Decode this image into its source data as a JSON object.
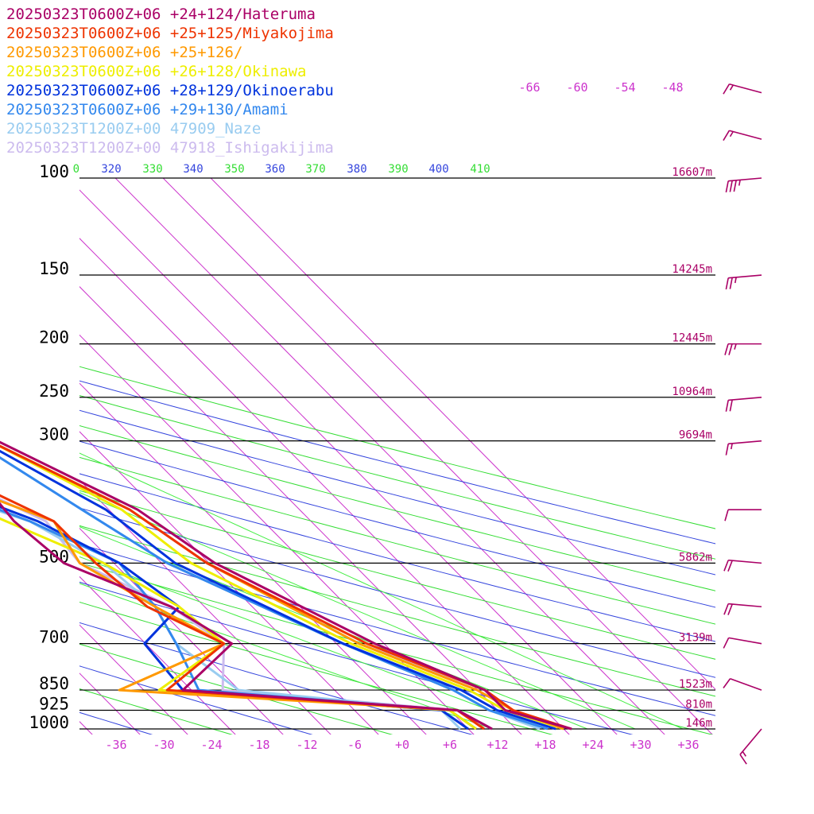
{
  "chart_data": {
    "type": "line",
    "title": "",
    "xlabel": "",
    "ylabel": "",
    "x_tick_labels": [
      "-36",
      "-30",
      "-24",
      "-18",
      "-12",
      "-6",
      "+0",
      "+6",
      "+12",
      "+18",
      "+24",
      "+30",
      "+36"
    ],
    "xlim": [
      -40,
      39
    ],
    "pressure_levels": [
      {
        "p": 100,
        "label": "100",
        "height": "16607m"
      },
      {
        "p": 150,
        "label": "150",
        "height": "14245m"
      },
      {
        "p": 200,
        "label": "200",
        "height": "12445m"
      },
      {
        "p": 250,
        "label": "250",
        "height": "10964m"
      },
      {
        "p": 300,
        "label": "300",
        "height": "9694m"
      },
      {
        "p": 500,
        "label": "500",
        "height": "5862m"
      },
      {
        "p": 700,
        "label": "700",
        "height": "3139m"
      },
      {
        "p": 850,
        "label": "850",
        "height": "1523m"
      },
      {
        "p": 925,
        "label": "925",
        "height": "810m"
      },
      {
        "p": 1000,
        "label": "1000",
        "height": "146m"
      }
    ],
    "theta_labels": [
      "0",
      "320",
      "330",
      "340",
      "350",
      "360",
      "370",
      "380",
      "390",
      "400",
      "410"
    ],
    "mixing_labels": [
      "-66",
      "-60",
      "-54",
      "-48"
    ],
    "series": [
      {
        "name": "20250323T0600Z+06 +24+124/Hateruma",
        "color": "#aa0066",
        "temp": [
          [
            1000,
            22
          ],
          [
            925,
            16
          ],
          [
            850,
            16
          ],
          [
            700,
            8
          ],
          [
            500,
            -2
          ],
          [
            400,
            -5
          ],
          [
            300,
            -14
          ],
          [
            250,
            -24
          ],
          [
            200,
            -38
          ],
          [
            150,
            -57
          ],
          [
            120,
            -66
          ],
          [
            100,
            -61
          ]
        ],
        "dew": [
          [
            1000,
            12
          ],
          [
            925,
            10
          ],
          [
            850,
            -22
          ],
          [
            700,
            -10
          ],
          [
            600,
            -13
          ],
          [
            500,
            -21
          ],
          [
            420,
            -22
          ],
          [
            350,
            -21
          ],
          [
            310,
            -25
          ]
        ]
      },
      {
        "name": "20250323T0600Z+06 +25+125/Miyakojima",
        "color": "#ee3300",
        "temp": [
          [
            1000,
            22
          ],
          [
            925,
            17
          ],
          [
            850,
            16
          ],
          [
            700,
            7
          ],
          [
            500,
            -3
          ],
          [
            400,
            -6
          ],
          [
            300,
            -15
          ],
          [
            250,
            -24
          ],
          [
            200,
            -38
          ],
          [
            150,
            -57
          ],
          [
            120,
            -64
          ],
          [
            100,
            -59
          ]
        ],
        "dew": [
          [
            1000,
            11
          ],
          [
            925,
            10
          ],
          [
            850,
            -24
          ],
          [
            700,
            -11
          ],
          [
            600,
            -16
          ],
          [
            500,
            -17
          ],
          [
            420,
            -17
          ],
          [
            350,
            -23
          ],
          [
            310,
            -28
          ]
        ]
      },
      {
        "name": "20250323T0600Z+06 +25+126/",
        "color": "#ff9900",
        "temp": [
          [
            1000,
            21
          ],
          [
            925,
            17
          ],
          [
            850,
            15
          ],
          [
            700,
            6
          ],
          [
            500,
            -3
          ],
          [
            400,
            -6
          ],
          [
            300,
            -15
          ],
          [
            250,
            -24
          ],
          [
            200,
            -38
          ],
          [
            150,
            -57
          ],
          [
            120,
            -63
          ],
          [
            100,
            -58
          ]
        ],
        "dew": [
          [
            1000,
            11
          ],
          [
            925,
            10
          ],
          [
            850,
            -30
          ],
          [
            700,
            -11
          ],
          [
            600,
            -15
          ],
          [
            500,
            -19
          ],
          [
            420,
            -17
          ],
          [
            350,
            -26
          ],
          [
            310,
            -31
          ]
        ]
      },
      {
        "name": "20250323T0600Z+06 +26+128/Okinawa",
        "color": "#eeee00",
        "temp": [
          [
            1000,
            21
          ],
          [
            925,
            16
          ],
          [
            850,
            14
          ],
          [
            700,
            5
          ],
          [
            500,
            -5
          ],
          [
            400,
            -7
          ],
          [
            300,
            -15
          ],
          [
            250,
            -24
          ],
          [
            200,
            -38
          ],
          [
            150,
            -57
          ],
          [
            120,
            -62
          ],
          [
            100,
            -57
          ]
        ],
        "dew": [
          [
            1000,
            10
          ],
          [
            925,
            9
          ],
          [
            850,
            -25
          ],
          [
            700,
            -11
          ],
          [
            600,
            -12
          ],
          [
            500,
            -16
          ],
          [
            420,
            -23
          ],
          [
            350,
            -30
          ],
          [
            310,
            -33
          ]
        ]
      },
      {
        "name": "20250323T0600Z+06 +28+129/Okinoerabu",
        "color": "#0033dd",
        "temp": [
          [
            1000,
            20
          ],
          [
            925,
            15
          ],
          [
            850,
            13
          ],
          [
            700,
            4
          ],
          [
            500,
            -7
          ],
          [
            400,
            -9
          ],
          [
            300,
            -16
          ],
          [
            250,
            -24
          ],
          [
            200,
            -38
          ],
          [
            150,
            -58
          ],
          [
            120,
            -60
          ],
          [
            100,
            -56
          ]
        ],
        "dew": [
          [
            1000,
            9
          ],
          [
            925,
            8
          ],
          [
            850,
            -22
          ],
          [
            700,
            -21
          ],
          [
            600,
            -12
          ],
          [
            500,
            -14
          ],
          [
            420,
            -19
          ],
          [
            350,
            -28
          ],
          [
            310,
            -33
          ]
        ]
      },
      {
        "name": "20250323T0600Z+06 +29+130/Amami",
        "color": "#3388ee",
        "temp": [
          [
            1000,
            19
          ],
          [
            925,
            14
          ],
          [
            850,
            12
          ],
          [
            700,
            4
          ],
          [
            500,
            -8
          ],
          [
            400,
            -12
          ],
          [
            300,
            -17
          ],
          [
            250,
            -24
          ],
          [
            200,
            -39
          ],
          [
            150,
            -58
          ],
          [
            120,
            -59
          ],
          [
            100,
            -55
          ]
        ],
        "dew": [
          [
            1000,
            10
          ],
          [
            925,
            9
          ],
          [
            850,
            -20
          ],
          [
            700,
            -17
          ],
          [
            600,
            -15
          ],
          [
            500,
            -14
          ],
          [
            420,
            -20
          ],
          [
            350,
            -29
          ],
          [
            310,
            -33
          ]
        ]
      },
      {
        "name": "20250323T1200Z+00 47909_Naze",
        "color": "#99ccf0",
        "temp": [
          [
            1000,
            18
          ],
          [
            925,
            14
          ],
          [
            850,
            12
          ],
          [
            700,
            4
          ],
          [
            500,
            -8
          ],
          [
            400,
            -12
          ],
          [
            300,
            -17
          ],
          [
            250,
            -25
          ],
          [
            200,
            -40
          ],
          [
            150,
            -58
          ],
          [
            120,
            -59
          ],
          [
            100,
            -57
          ]
        ],
        "dew": [
          [
            1000,
            8
          ],
          [
            925,
            8
          ],
          [
            850,
            -15
          ],
          [
            700,
            -17
          ],
          [
            600,
            -15
          ],
          [
            500,
            -16
          ],
          [
            420,
            -20
          ],
          [
            350,
            -31
          ],
          [
            300,
            -35
          ],
          [
            250,
            -42
          ],
          [
            200,
            -62
          ],
          [
            150,
            -72
          ],
          [
            120,
            -74
          ],
          [
            100,
            -74
          ]
        ]
      },
      {
        "name": "20250323T1200Z+00 47918_Ishigakijima",
        "color": "#ccbbee",
        "temp": [
          [
            1000,
            21
          ],
          [
            925,
            17
          ],
          [
            850,
            16
          ],
          [
            700,
            6
          ],
          [
            500,
            -3
          ],
          [
            400,
            -6
          ],
          [
            300,
            -15
          ],
          [
            250,
            -24
          ],
          [
            200,
            -38
          ],
          [
            150,
            -57
          ],
          [
            120,
            -61
          ],
          [
            100,
            -60
          ]
        ],
        "dew": [
          [
            1000,
            12
          ],
          [
            925,
            10
          ],
          [
            850,
            -17
          ],
          [
            700,
            -11
          ],
          [
            600,
            -13
          ],
          [
            500,
            -19
          ],
          [
            420,
            -18
          ],
          [
            350,
            -24
          ],
          [
            310,
            -30
          ],
          [
            250,
            -46
          ],
          [
            200,
            -58
          ],
          [
            150,
            -72
          ],
          [
            120,
            -73
          ],
          [
            100,
            -72
          ]
        ]
      }
    ],
    "winds": [
      {
        "p": 70,
        "speed": 15,
        "dir": 255
      },
      {
        "p": 85,
        "speed": 15,
        "dir": 255
      },
      {
        "p": 100,
        "speed": 35,
        "dir": 275
      },
      {
        "p": 150,
        "speed": 25,
        "dir": 275
      },
      {
        "p": 200,
        "speed": 25,
        "dir": 270
      },
      {
        "p": 250,
        "speed": 20,
        "dir": 275
      },
      {
        "p": 300,
        "speed": 15,
        "dir": 275
      },
      {
        "p": 400,
        "speed": 10,
        "dir": 270
      },
      {
        "p": 500,
        "speed": 20,
        "dir": 265
      },
      {
        "p": 600,
        "speed": 20,
        "dir": 265
      },
      {
        "p": 700,
        "speed": 10,
        "dir": 260
      },
      {
        "p": 850,
        "speed": 10,
        "dir": 250
      },
      {
        "p": 1000,
        "speed": 15,
        "dir": 320
      }
    ]
  }
}
